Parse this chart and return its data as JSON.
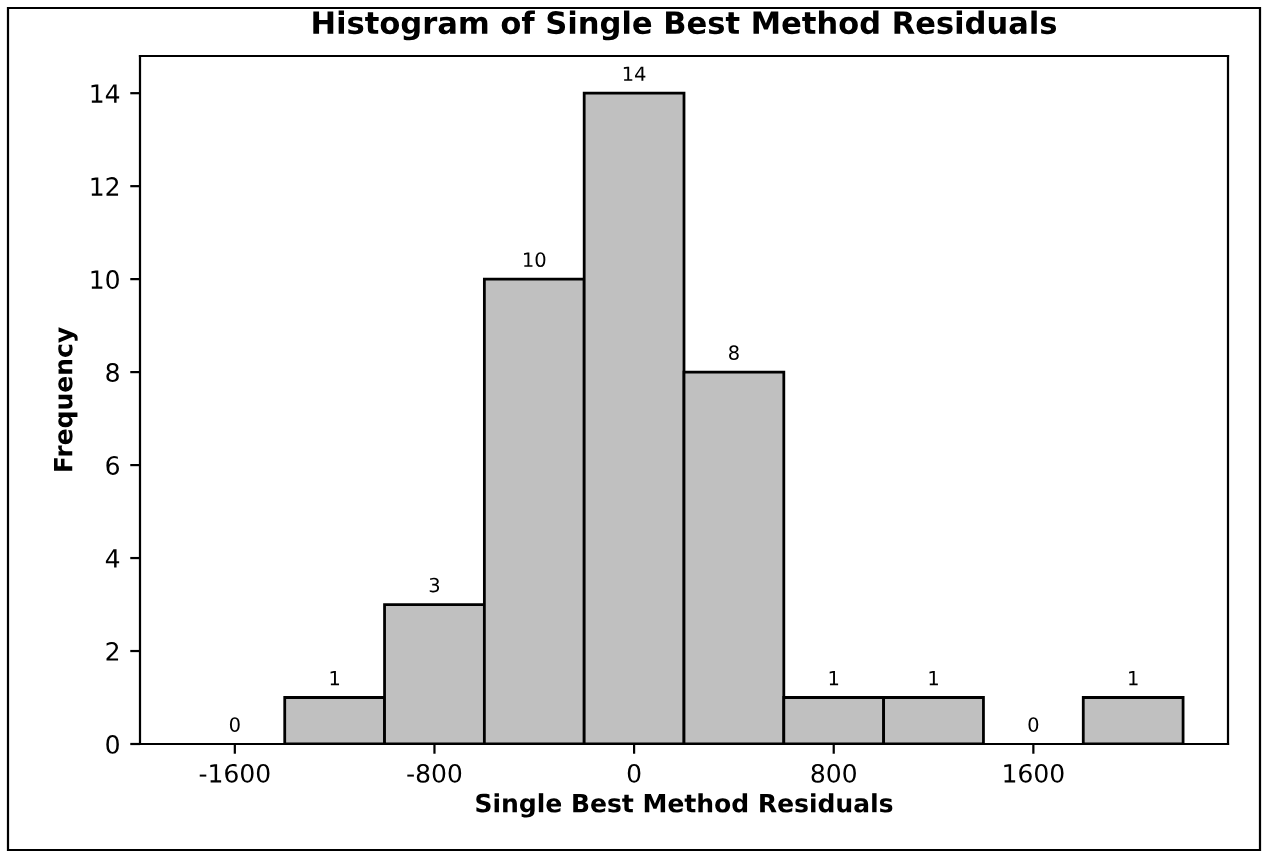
{
  "chart_data": {
    "type": "histogram",
    "title": "Histogram of Single Best Method Residuals",
    "xlabel": "Single Best Method Residuals",
    "ylabel": "Frequency",
    "bins": [
      -1800,
      -1400,
      -1000,
      -600,
      -200,
      200,
      600,
      1000,
      1400,
      1800,
      2200
    ],
    "values": [
      0,
      1,
      3,
      10,
      14,
      8,
      1,
      1,
      0,
      1
    ],
    "color": "#c0c0c0",
    "xlim": [
      -1980,
      2380
    ],
    "xticks": [
      -1600,
      -800,
      0,
      800,
      1600
    ],
    "ylim": [
      0,
      14.8
    ],
    "yticks": [
      0,
      2,
      4,
      6,
      8,
      10,
      12,
      14
    ],
    "data_labels": true,
    "grid": false
  }
}
